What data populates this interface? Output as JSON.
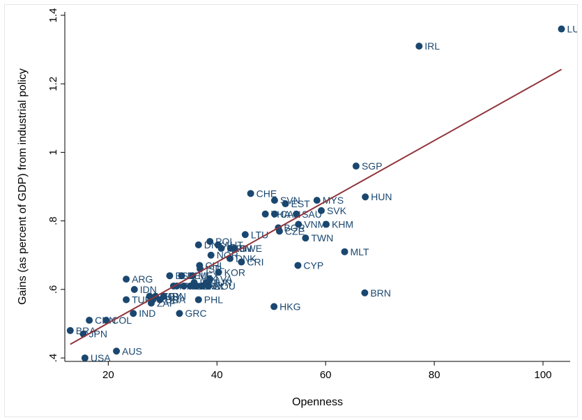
{
  "chart_data": {
    "type": "scatter",
    "xlabel": "Openness",
    "ylabel": "Gains (as percent of GDP) from industrial policy",
    "xlim": [
      12,
      105
    ],
    "ylim": [
      0.39,
      1.41
    ],
    "x_ticks": [
      20,
      40,
      60,
      80,
      100
    ],
    "x_tick_labels": [
      "20",
      "40",
      "60",
      "80",
      "100"
    ],
    "y_ticks": [
      0.4,
      0.6,
      0.8,
      1.0,
      1.2,
      1.4
    ],
    "y_tick_labels": [
      ".4",
      ".6",
      ".8",
      "1",
      "1.2",
      "1.4"
    ],
    "grid": false,
    "colors": {
      "points": "#1a476f",
      "fit_line": "#90353b",
      "axis": "#000000"
    },
    "fit_line": {
      "x": [
        13,
        103.4
      ],
      "y": [
        0.44,
        1.242
      ]
    },
    "points": [
      {
        "label": "LUX",
        "x": 103.4,
        "y": 1.36
      },
      {
        "label": "IRL",
        "x": 77.2,
        "y": 1.31
      },
      {
        "label": "SGP",
        "x": 65.6,
        "y": 0.96
      },
      {
        "label": "HUN",
        "x": 67.3,
        "y": 0.87
      },
      {
        "label": "CHE",
        "x": 46.2,
        "y": 0.88
      },
      {
        "label": "SVN",
        "x": 50.6,
        "y": 0.86
      },
      {
        "label": "EST",
        "x": 52.6,
        "y": 0.85
      },
      {
        "label": "MYS",
        "x": 58.4,
        "y": 0.86
      },
      {
        "label": "SVK",
        "x": 59.2,
        "y": 0.83
      },
      {
        "label": "THA",
        "x": 48.9,
        "y": 0.82
      },
      {
        "label": "CAN",
        "x": 50.6,
        "y": 0.82
      },
      {
        "label": "SAU",
        "x": 54.6,
        "y": 0.82
      },
      {
        "label": "KHM",
        "x": 60.1,
        "y": 0.79
      },
      {
        "label": "VNM",
        "x": 55.0,
        "y": 0.79
      },
      {
        "label": "BGR",
        "x": 51.3,
        "y": 0.78
      },
      {
        "label": "CZE",
        "x": 51.5,
        "y": 0.77
      },
      {
        "label": "LTU",
        "x": 45.2,
        "y": 0.76
      },
      {
        "label": "TWN",
        "x": 56.3,
        "y": 0.75
      },
      {
        "label": "MLT",
        "x": 63.5,
        "y": 0.71
      },
      {
        "label": "BRN",
        "x": 67.2,
        "y": 0.59
      },
      {
        "label": "CYP",
        "x": 54.9,
        "y": 0.67
      },
      {
        "label": "HKG",
        "x": 50.5,
        "y": 0.55
      },
      {
        "label": "POL",
        "x": 38.7,
        "y": 0.74
      },
      {
        "label": "DNK",
        "x": 36.6,
        "y": 0.73
      },
      {
        "label": "AUT",
        "x": 40.2,
        "y": 0.73
      },
      {
        "label": "NLD",
        "x": 40.8,
        "y": 0.72
      },
      {
        "label": "FIN",
        "x": 42.5,
        "y": 0.72
      },
      {
        "label": "SWE",
        "x": 43.2,
        "y": 0.72
      },
      {
        "label": "NOR",
        "x": 38.9,
        "y": 0.7
      },
      {
        "label": "DNK",
        "x": 42.4,
        "y": 0.69
      },
      {
        "label": "CRI",
        "x": 44.5,
        "y": 0.68
      },
      {
        "label": "CHL",
        "x": 36.8,
        "y": 0.67
      },
      {
        "label": "ISR",
        "x": 36.9,
        "y": 0.66
      },
      {
        "label": "KOR",
        "x": 40.3,
        "y": 0.65
      },
      {
        "label": "MEX",
        "x": 35.5,
        "y": 0.64
      },
      {
        "label": "ESP",
        "x": 31.3,
        "y": 0.64
      },
      {
        "label": "DEU",
        "x": 33.5,
        "y": 0.64
      },
      {
        "label": "LVA",
        "x": 38.7,
        "y": 0.63
      },
      {
        "label": "PRT",
        "x": 35.8,
        "y": 0.62
      },
      {
        "label": "NZL",
        "x": 37.2,
        "y": 0.61
      },
      {
        "label": "GBR",
        "x": 33.9,
        "y": 0.61
      },
      {
        "label": "ITA",
        "x": 32.0,
        "y": 0.61
      },
      {
        "label": "FRA",
        "x": 32.6,
        "y": 0.61
      },
      {
        "label": "PER",
        "x": 35.1,
        "y": 0.61
      },
      {
        "label": "HRV",
        "x": 36.2,
        "y": 0.61
      },
      {
        "label": "PHL",
        "x": 36.6,
        "y": 0.57
      },
      {
        "label": "ROU",
        "x": 38.4,
        "y": 0.61
      },
      {
        "label": "TUN",
        "x": 38.0,
        "y": 0.62
      },
      {
        "label": "ARG",
        "x": 23.3,
        "y": 0.63
      },
      {
        "label": "IDN",
        "x": 24.8,
        "y": 0.6
      },
      {
        "label": "TUR",
        "x": 23.3,
        "y": 0.57
      },
      {
        "label": "NZD",
        "x": 27.6,
        "y": 0.58
      },
      {
        "label": "RUS",
        "x": 28.2,
        "y": 0.57
      },
      {
        "label": "BRA",
        "x": 29.5,
        "y": 0.57
      },
      {
        "label": "ZAF",
        "x": 27.9,
        "y": 0.56
      },
      {
        "label": "EGY",
        "x": 28.7,
        "y": 0.58
      },
      {
        "label": "IRN",
        "x": 30.2,
        "y": 0.58
      },
      {
        "label": "GRC",
        "x": 33.1,
        "y": 0.53
      },
      {
        "label": "IND",
        "x": 24.6,
        "y": 0.53
      },
      {
        "label": "CHN",
        "x": 16.5,
        "y": 0.51
      },
      {
        "label": "COL",
        "x": 19.6,
        "y": 0.51
      },
      {
        "label": "BRA",
        "x": 13.0,
        "y": 0.48
      },
      {
        "label": "JPN",
        "x": 15.4,
        "y": 0.47
      },
      {
        "label": "AUS",
        "x": 21.5,
        "y": 0.42
      },
      {
        "label": "USA",
        "x": 15.7,
        "y": 0.4
      }
    ]
  }
}
